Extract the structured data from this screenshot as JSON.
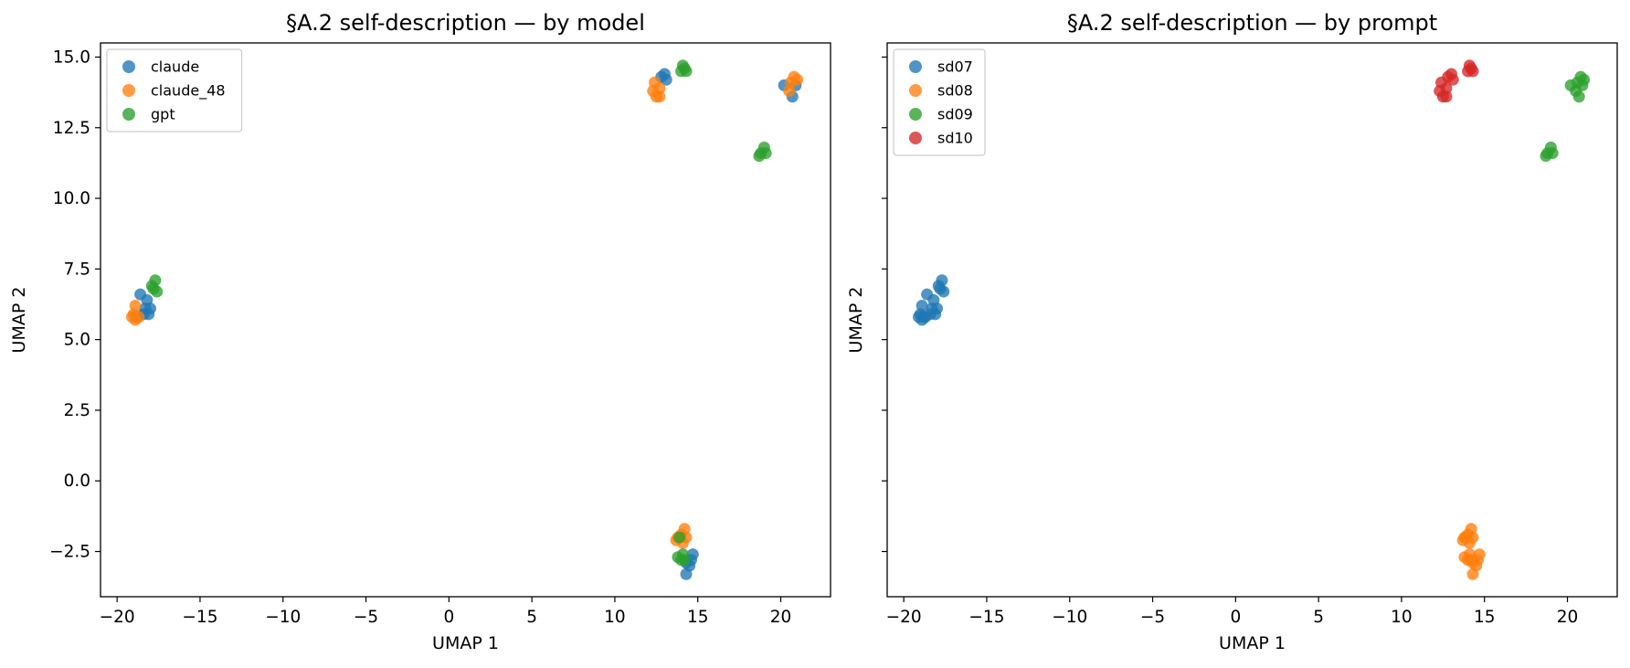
{
  "chart_data": [
    {
      "type": "scatter",
      "title": "§A.2 self-description — by model",
      "xlabel": "UMAP 1",
      "ylabel": "UMAP 2",
      "xlim": [
        -21,
        23
      ],
      "ylim": [
        -4.1,
        15.5
      ],
      "xticks": [
        -20,
        -15,
        -10,
        -5,
        0,
        5,
        10,
        15,
        20
      ],
      "xtick_labels": [
        "−20",
        "−15",
        "−10",
        "−5",
        "0",
        "5",
        "10",
        "15",
        "20"
      ],
      "yticks": [
        -2.5,
        0.0,
        2.5,
        5.0,
        7.5,
        10.0,
        12.5,
        15.0
      ],
      "ytick_labels": [
        "−2.5",
        "0.0",
        "2.5",
        "5.0",
        "7.5",
        "10.0",
        "12.5",
        "15.0"
      ],
      "legend": "top-left",
      "grid": false,
      "series": [
        {
          "name": "claude",
          "color": "#1f77b4",
          "points": [
            [
              -18.6,
              6.6
            ],
            [
              -18.2,
              6.4
            ],
            [
              -18.3,
              6.1
            ],
            [
              -18.0,
              6.1
            ],
            [
              -18.4,
              5.9
            ],
            [
              -18.1,
              5.9
            ],
            [
              -18.8,
              5.8
            ],
            [
              13.0,
              14.4
            ],
            [
              13.1,
              14.2
            ],
            [
              12.8,
              14.3
            ],
            [
              20.2,
              14.0
            ],
            [
              20.9,
              14.0
            ],
            [
              20.7,
              13.6
            ],
            [
              14.3,
              -3.3
            ],
            [
              14.5,
              -3.0
            ],
            [
              14.7,
              -2.6
            ],
            [
              14.3,
              -2.9
            ],
            [
              14.6,
              -2.8
            ]
          ]
        },
        {
          "name": "claude_48",
          "color": "#ff7f0e",
          "points": [
            [
              -18.9,
              6.2
            ],
            [
              -19.0,
              5.9
            ],
            [
              -19.1,
              5.8
            ],
            [
              -18.7,
              5.8
            ],
            [
              -18.9,
              5.7
            ],
            [
              12.4,
              14.1
            ],
            [
              12.7,
              13.9
            ],
            [
              12.3,
              13.8
            ],
            [
              12.5,
              13.6
            ],
            [
              12.7,
              13.6
            ],
            [
              20.8,
              14.3
            ],
            [
              21.0,
              14.2
            ],
            [
              20.6,
              14.1
            ],
            [
              20.5,
              13.8
            ],
            [
              14.2,
              -1.7
            ],
            [
              14.0,
              -1.9
            ],
            [
              13.8,
              -2.0
            ],
            [
              14.3,
              -2.0
            ],
            [
              13.7,
              -2.1
            ],
            [
              14.1,
              -2.2
            ]
          ]
        },
        {
          "name": "gpt",
          "color": "#2ca02c",
          "points": [
            [
              -17.7,
              7.1
            ],
            [
              -17.9,
              6.9
            ],
            [
              -17.6,
              6.7
            ],
            [
              -17.8,
              6.8
            ],
            [
              14.1,
              14.7
            ],
            [
              14.2,
              14.6
            ],
            [
              14.0,
              14.5
            ],
            [
              14.3,
              14.5
            ],
            [
              19.0,
              11.8
            ],
            [
              18.8,
              11.6
            ],
            [
              19.1,
              11.6
            ],
            [
              18.7,
              11.5
            ],
            [
              13.9,
              -2.0
            ],
            [
              14.1,
              -2.6
            ],
            [
              13.8,
              -2.7
            ],
            [
              14.2,
              -2.8
            ],
            [
              14.0,
              -2.8
            ]
          ]
        }
      ]
    },
    {
      "type": "scatter",
      "title": "§A.2 self-description — by prompt",
      "xlabel": "UMAP 1",
      "ylabel": "UMAP 2",
      "xlim": [
        -21,
        23
      ],
      "ylim": [
        -4.1,
        15.5
      ],
      "xticks": [
        -20,
        -15,
        -10,
        -5,
        0,
        5,
        10,
        15,
        20
      ],
      "xtick_labels": [
        "−20",
        "−15",
        "−10",
        "−5",
        "0",
        "5",
        "10",
        "15",
        "20"
      ],
      "yticks": [
        -2.5,
        0.0,
        2.5,
        5.0,
        7.5,
        10.0,
        12.5,
        15.0
      ],
      "ytick_labels": [],
      "legend": "top-left",
      "grid": false,
      "series": [
        {
          "name": "sd07",
          "color": "#1f77b4",
          "points": [
            [
              -17.7,
              7.1
            ],
            [
              -17.9,
              6.9
            ],
            [
              -17.6,
              6.7
            ],
            [
              -17.8,
              6.8
            ],
            [
              -18.6,
              6.6
            ],
            [
              -18.2,
              6.4
            ],
            [
              -18.3,
              6.1
            ],
            [
              -18.0,
              6.1
            ],
            [
              -18.4,
              5.9
            ],
            [
              -18.1,
              5.9
            ],
            [
              -18.8,
              5.8
            ],
            [
              -18.9,
              6.2
            ],
            [
              -19.0,
              5.9
            ],
            [
              -19.1,
              5.8
            ],
            [
              -18.7,
              5.8
            ],
            [
              -18.9,
              5.7
            ]
          ]
        },
        {
          "name": "sd08",
          "color": "#ff7f0e",
          "points": [
            [
              14.2,
              -1.7
            ],
            [
              14.0,
              -1.9
            ],
            [
              13.8,
              -2.0
            ],
            [
              14.3,
              -2.0
            ],
            [
              13.7,
              -2.1
            ],
            [
              14.1,
              -2.2
            ],
            [
              14.3,
              -3.3
            ],
            [
              14.5,
              -3.0
            ],
            [
              14.7,
              -2.6
            ],
            [
              14.3,
              -2.9
            ],
            [
              14.6,
              -2.8
            ],
            [
              13.9,
              -2.0
            ],
            [
              14.1,
              -2.6
            ],
            [
              13.8,
              -2.7
            ],
            [
              14.2,
              -2.8
            ],
            [
              14.0,
              -2.8
            ]
          ]
        },
        {
          "name": "sd09",
          "color": "#2ca02c",
          "points": [
            [
              19.0,
              11.8
            ],
            [
              18.8,
              11.6
            ],
            [
              19.1,
              11.6
            ],
            [
              18.7,
              11.5
            ],
            [
              20.2,
              14.0
            ],
            [
              20.9,
              14.0
            ],
            [
              20.7,
              13.6
            ],
            [
              20.8,
              14.3
            ],
            [
              21.0,
              14.2
            ],
            [
              20.6,
              14.1
            ],
            [
              20.5,
              13.8
            ]
          ]
        },
        {
          "name": "sd10",
          "color": "#d62728",
          "points": [
            [
              14.1,
              14.7
            ],
            [
              14.2,
              14.6
            ],
            [
              14.0,
              14.5
            ],
            [
              14.3,
              14.5
            ],
            [
              13.0,
              14.4
            ],
            [
              13.1,
              14.2
            ],
            [
              12.8,
              14.3
            ],
            [
              12.4,
              14.1
            ],
            [
              12.7,
              13.9
            ],
            [
              12.3,
              13.8
            ],
            [
              12.5,
              13.6
            ],
            [
              12.7,
              13.6
            ]
          ]
        }
      ]
    }
  ]
}
